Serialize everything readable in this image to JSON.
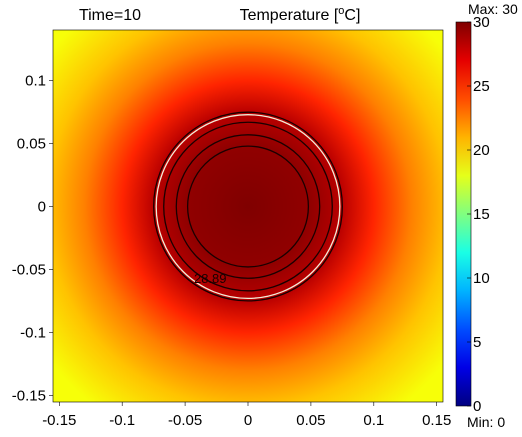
{
  "header": {
    "time_label": "Time=10",
    "title_main": "Temperature [",
    "title_sup": "o",
    "title_unit": "C]"
  },
  "colorbar": {
    "max_label": "Max: 30",
    "min_label": "Min: 0",
    "ticks": [
      "30",
      "25",
      "20",
      "15",
      "10",
      "5",
      "0"
    ]
  },
  "chart_data": {
    "type": "heatmap",
    "title": "Temperature [oC]",
    "subtitle": "Time=10",
    "xlim": [
      -0.155,
      0.155
    ],
    "ylim": [
      -0.155,
      0.14
    ],
    "xticks": [
      "-0.15",
      "-0.1",
      "-0.05",
      "0",
      "0.05",
      "0.1",
      "0.15"
    ],
    "yticks": [
      "0.1",
      "0.05",
      "0",
      "-0.05",
      "-0.1",
      "-0.15"
    ],
    "colorscale": "jet",
    "color_range": [
      0,
      30
    ],
    "center": [
      0,
      0
    ],
    "values_radial_profile": {
      "r": [
        0,
        0.05,
        0.075,
        0.1,
        0.13,
        0.16,
        0.2
      ],
      "value": [
        30,
        29.5,
        28.3,
        25.2,
        22.5,
        20.5,
        18.5
      ]
    },
    "contours": [
      {
        "radius": 0.048,
        "color": "#1a0000"
      },
      {
        "radius": 0.057,
        "color": "#1a0000"
      },
      {
        "radius": 0.067,
        "color": "#1a0000"
      },
      {
        "radius": 0.075,
        "color": "#1a0000"
      },
      {
        "radius": 0.073,
        "color": "#f2ecd8"
      }
    ],
    "annotations": [
      {
        "text": "28.89",
        "x": -0.03,
        "y": -0.058
      }
    ]
  }
}
